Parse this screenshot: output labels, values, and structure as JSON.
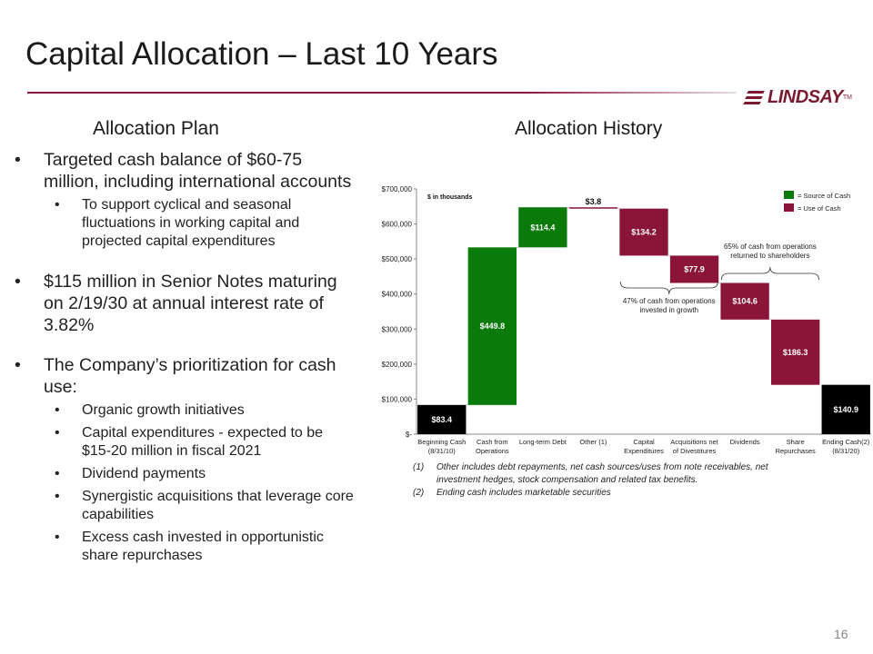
{
  "title": "Capital Allocation – Last 10 Years",
  "logo": {
    "text": "LINDSAY",
    "tm": "TM"
  },
  "left": {
    "heading": "Allocation Plan",
    "bullets": [
      {
        "text": "Targeted cash balance of $60-75 million, including international accounts",
        "sub": [
          "To support cyclical and seasonal fluctuations in working capital and projected capital expenditures"
        ]
      },
      {
        "text": "$115 million in Senior Notes maturing on 2/19/30 at annual interest rate of 3.82%",
        "sub": []
      },
      {
        "text": "The Company’s prioritization for cash use:",
        "sub": [
          "Organic growth initiatives",
          "Capital expenditures - expected to be $15-20 million in fiscal 2021",
          "Dividend payments",
          "Synergistic acquisitions that leverage core capabilities",
          "Excess cash invested in opportunistic share repurchases"
        ]
      }
    ]
  },
  "right": {
    "heading": "Allocation History"
  },
  "chart_data": {
    "type": "bar",
    "unit_note": "$ in thousands",
    "ylim": [
      0,
      700000
    ],
    "yticks": [
      {
        "value": 0,
        "label": "$-"
      },
      {
        "value": 100000,
        "label": "$100,000"
      },
      {
        "value": 200000,
        "label": "$200,000"
      },
      {
        "value": 300000,
        "label": "$300,000"
      },
      {
        "value": 400000,
        "label": "$400,000"
      },
      {
        "value": 500000,
        "label": "$500,000"
      },
      {
        "value": 600000,
        "label": "$600,000"
      },
      {
        "value": 700000,
        "label": "$700,000"
      }
    ],
    "legend": [
      {
        "label": "= Source of Cash",
        "color": "#0a7a0a"
      },
      {
        "label": "= Use of Cash",
        "color": "#8a1538"
      }
    ],
    "bars": [
      {
        "category": [
          "Beginning Cash",
          "(8/31/10)"
        ],
        "low": 0,
        "high": 83400,
        "label": "$83.4",
        "kind": "total"
      },
      {
        "category": [
          "Cash from",
          "Operations"
        ],
        "low": 83400,
        "high": 533200,
        "label": "$449.8",
        "kind": "source"
      },
      {
        "category": [
          "Long-term Debt"
        ],
        "low": 533200,
        "high": 647600,
        "label": "$114.4",
        "kind": "source"
      },
      {
        "category": [
          "Other (1)"
        ],
        "low": 643800,
        "high": 647600,
        "label": "$3.8",
        "kind": "use"
      },
      {
        "category": [
          "Capital",
          "Expenditures"
        ],
        "low": 509600,
        "high": 643800,
        "label": "$134.2",
        "kind": "use"
      },
      {
        "category": [
          "Acquisitions net",
          "of Divestitures"
        ],
        "low": 431700,
        "high": 509600,
        "label": "$77.9",
        "kind": "use"
      },
      {
        "category": [
          "Dividends"
        ],
        "low": 327100,
        "high": 431700,
        "label": "$104.6",
        "kind": "use"
      },
      {
        "category": [
          "Share",
          "Repurchases"
        ],
        "low": 140800,
        "high": 327100,
        "label": "$186.3",
        "kind": "use"
      },
      {
        "category": [
          "Ending Cash(2)",
          "(8/31/20)"
        ],
        "low": 0,
        "high": 140900,
        "label": "$140.9",
        "kind": "total"
      }
    ],
    "colors": {
      "source": "#0a7a0a",
      "use": "#8a1538",
      "total": "#000000"
    },
    "annotations": [
      {
        "text": [
          "47% of cash from operations",
          "invested in growth"
        ],
        "from": 4,
        "to": 5,
        "side": "below"
      },
      {
        "text": [
          "65% of cash from operations",
          "returned  to shareholders"
        ],
        "from": 6,
        "to": 7,
        "side": "above"
      }
    ]
  },
  "footnotes": [
    {
      "num": "(1)",
      "text": "Other includes debt repayments, net cash sources/uses from note receivables, net investment hedges, stock compensation and related tax benefits."
    },
    {
      "num": "(2)",
      "text": "Ending cash includes marketable securities"
    }
  ],
  "page_number": "16"
}
